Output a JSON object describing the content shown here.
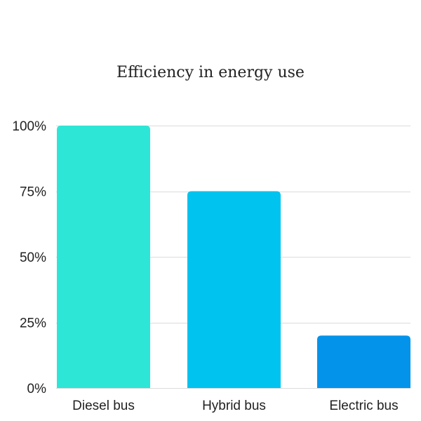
{
  "chart_data": {
    "type": "bar",
    "title": "Efficiency in energy use",
    "xlabel": "",
    "ylabel": "",
    "categories": [
      "Diesel bus",
      "Hybrid bus",
      "Electric bus"
    ],
    "values": [
      100,
      75,
      20
    ],
    "ylim": [
      0,
      100
    ],
    "yticks": [
      0,
      25,
      50,
      75,
      100
    ],
    "ytick_labels": [
      "0%",
      "25%",
      "50%",
      "75%",
      "100%"
    ],
    "bar_colors": [
      "#2ee6d6",
      "#00c4ef",
      "#0393ea"
    ],
    "grid": true,
    "legend": "none"
  }
}
